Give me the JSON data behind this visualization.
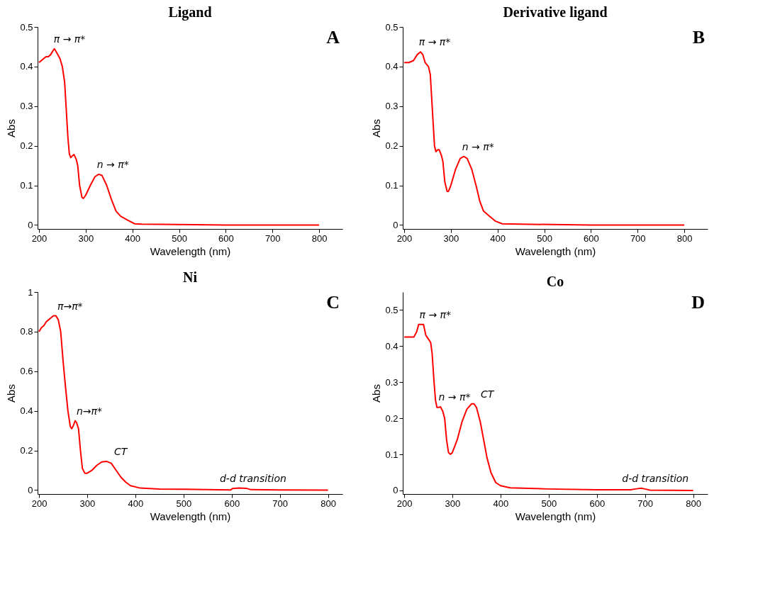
{
  "chart_data": [
    {
      "type": "line",
      "title": "Ligand",
      "xlabel": "Wavelength (nm)",
      "ylabel": "Abs",
      "grid": false,
      "line_style": "solid",
      "x": [
        200,
        205,
        210,
        215,
        220,
        225,
        230,
        233,
        238,
        245,
        250,
        255,
        258,
        262,
        265,
        268,
        272,
        275,
        280,
        283,
        287,
        292,
        295,
        300,
        310,
        320,
        328,
        335,
        345,
        355,
        365,
        375,
        390,
        405,
        420,
        500,
        600,
        700,
        800
      ],
      "series": [
        {
          "color": "#ff0000",
          "values": [
            0.41,
            0.415,
            0.42,
            0.425,
            0.425,
            0.43,
            0.44,
            0.445,
            0.435,
            0.42,
            0.4,
            0.36,
            0.3,
            0.22,
            0.18,
            0.17,
            0.175,
            0.178,
            0.165,
            0.15,
            0.1,
            0.07,
            0.067,
            0.075,
            0.1,
            0.122,
            0.128,
            0.125,
            0.1,
            0.065,
            0.035,
            0.022,
            0.012,
            0.003,
            0.002,
            0.001,
            0,
            0,
            0
          ]
        }
      ],
      "xlim": [
        197,
        850
      ],
      "ylim": [
        -0.01,
        0.5
      ],
      "xticks": [
        200,
        300,
        400,
        500,
        600,
        700,
        800
      ],
      "yticks": [
        0,
        0.1,
        0.2,
        0.3,
        0.4,
        0.5
      ],
      "annotations": [
        "A",
        {
          "text": "π → π*",
          "x": 235,
          "y": 0.445
        },
        {
          "text": "n → π*",
          "x": 328,
          "y": 0.128
        }
      ]
    },
    {
      "type": "line",
      "title": "Derivative ligand",
      "xlabel": "Wavelength (nm)",
      "ylabel": "Abs",
      "grid": false,
      "line_style": "solid",
      "x": [
        200,
        210,
        220,
        228,
        235,
        240,
        245,
        252,
        256,
        258,
        262,
        265,
        268,
        272,
        275,
        280,
        283,
        287,
        292,
        295,
        300,
        310,
        320,
        328,
        335,
        345,
        355,
        362,
        370,
        380,
        395,
        410,
        450,
        600,
        800
      ],
      "series": [
        {
          "color": "#ff0000",
          "values": [
            0.41,
            0.41,
            0.415,
            0.43,
            0.437,
            0.43,
            0.41,
            0.4,
            0.38,
            0.34,
            0.26,
            0.2,
            0.185,
            0.19,
            0.19,
            0.175,
            0.16,
            0.11,
            0.085,
            0.085,
            0.1,
            0.14,
            0.168,
            0.173,
            0.168,
            0.14,
            0.095,
            0.06,
            0.035,
            0.025,
            0.01,
            0.003,
            0.002,
            0,
            0
          ]
        }
      ],
      "xlim": [
        197,
        850
      ],
      "ylim": [
        -0.01,
        0.5
      ],
      "xticks": [
        200,
        300,
        400,
        500,
        600,
        700,
        800
      ],
      "yticks": [
        0,
        0.1,
        0.2,
        0.3,
        0.4,
        0.5
      ],
      "annotations": [
        "B",
        {
          "text": "π → π*",
          "x": 235,
          "y": 0.437
        },
        {
          "text": "n → π*",
          "x": 328,
          "y": 0.173
        }
      ]
    },
    {
      "type": "line",
      "title": "Ni",
      "xlabel": "Wavelength (nm)",
      "ylabel": "Abs",
      "grid": false,
      "line_style": "solid",
      "x": [
        200,
        205,
        210,
        215,
        220,
        225,
        230,
        235,
        240,
        245,
        250,
        255,
        260,
        265,
        268,
        272,
        275,
        278,
        282,
        286,
        290,
        295,
        300,
        310,
        320,
        330,
        340,
        350,
        360,
        370,
        380,
        390,
        410,
        450,
        500,
        550,
        598,
        602,
        615,
        630,
        640,
        700,
        800
      ],
      "series": [
        {
          "color": "#ff0000",
          "values": [
            0.8,
            0.82,
            0.83,
            0.85,
            0.86,
            0.87,
            0.88,
            0.88,
            0.86,
            0.8,
            0.65,
            0.52,
            0.4,
            0.32,
            0.31,
            0.33,
            0.35,
            0.34,
            0.31,
            0.2,
            0.11,
            0.085,
            0.085,
            0.1,
            0.125,
            0.142,
            0.145,
            0.135,
            0.1,
            0.065,
            0.04,
            0.022,
            0.01,
            0.005,
            0.004,
            0.002,
            0.001,
            0.008,
            0.01,
            0.009,
            0.002,
            0.001,
            0
          ]
        }
      ],
      "xlim": [
        197,
        830
      ],
      "ylim": [
        -0.02,
        1
      ],
      "xticks": [
        200,
        300,
        400,
        500,
        600,
        700,
        800
      ],
      "yticks": [
        0,
        0.2,
        0.4,
        0.6,
        0.8,
        1
      ],
      "annotations": [
        "C",
        {
          "text": "π→π*",
          "x": 235,
          "y": 0.88
        },
        {
          "text": "n→π*",
          "x": 275,
          "y": 0.35
        },
        {
          "text": "CT",
          "x": 340,
          "y": 0.145
        },
        {
          "text": "d-d transition",
          "x": 615,
          "y": 0.01
        }
      ]
    },
    {
      "type": "line",
      "title": "Co",
      "xlabel": "Wavelength (nm)",
      "ylabel": "Abs",
      "grid": false,
      "line_style": "solid",
      "x": [
        200,
        210,
        220,
        226,
        230,
        235,
        240,
        245,
        250,
        255,
        258,
        262,
        265,
        268,
        272,
        275,
        280,
        284,
        288,
        292,
        296,
        300,
        310,
        320,
        330,
        340,
        345,
        350,
        358,
        365,
        372,
        380,
        390,
        400,
        420,
        500,
        600,
        670,
        680,
        692,
        700,
        710,
        800
      ],
      "series": [
        {
          "color": "#ff0000",
          "values": [
            0.425,
            0.425,
            0.425,
            0.44,
            0.46,
            0.46,
            0.46,
            0.43,
            0.42,
            0.41,
            0.38,
            0.3,
            0.25,
            0.23,
            0.23,
            0.232,
            0.22,
            0.2,
            0.14,
            0.105,
            0.1,
            0.105,
            0.14,
            0.19,
            0.225,
            0.24,
            0.24,
            0.23,
            0.19,
            0.14,
            0.09,
            0.05,
            0.022,
            0.013,
            0.007,
            0.004,
            0.002,
            0.002,
            0.004,
            0.006,
            0.004,
            0.001,
            0
          ]
        }
      ],
      "xlim": [
        197,
        830
      ],
      "ylim": [
        -0.01,
        0.55
      ],
      "xticks": [
        200,
        300,
        400,
        500,
        600,
        700,
        800
      ],
      "yticks": [
        0,
        0.1,
        0.2,
        0.3,
        0.4,
        0.5
      ],
      "annotations": [
        "D",
        {
          "text": "π → π*",
          "x": 235,
          "y": 0.46
        },
        {
          "text": "n → π*",
          "x": 275,
          "y": 0.232
        },
        {
          "text": "CT",
          "x": 343,
          "y": 0.24
        },
        {
          "text": "d-d transition",
          "x": 692,
          "y": 0.006
        }
      ]
    }
  ]
}
